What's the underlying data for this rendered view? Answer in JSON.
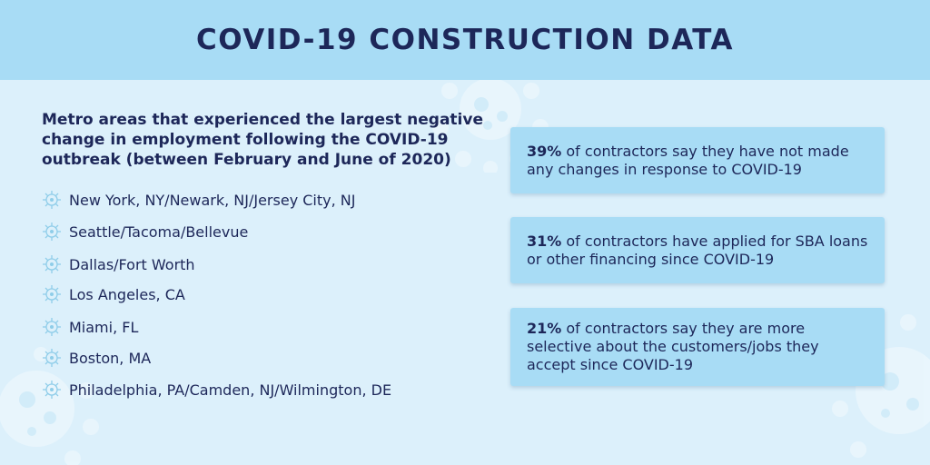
{
  "header": {
    "title": "COVID-19 CONSTRUCTION DATA"
  },
  "subtitle": "Metro areas that experienced the largest negative change in employment following the COVID-19 outbreak (between February and June of 2020)",
  "metros": [
    "New York, NY/Newark, NJ/Jersey City, NJ",
    "Seattle/Tacoma/Bellevue",
    "Dallas/Fort Worth",
    "Los Angeles, CA",
    "Miami, FL",
    "Boston, MA",
    "Philadelphia, PA/Camden, NJ/Wilmington, DE"
  ],
  "stats": [
    {
      "percent": "39%",
      "text": " of contractors say they have not made any changes in response to COVID-19"
    },
    {
      "percent": "31%",
      "text": " of contractors have applied for SBA loans or other financing since COVID-19"
    },
    {
      "percent": "21%",
      "text": " of contractors say they are more selective about the customers/jobs they accept since COVID-19"
    }
  ],
  "icons": {
    "bullet": "virus-icon",
    "background": "virus-icon"
  },
  "colors": {
    "header_bg": "#a8dcf5",
    "page_bg": "#dcf0fb",
    "card_bg": "#a8dcf5",
    "text": "#1d2759"
  }
}
